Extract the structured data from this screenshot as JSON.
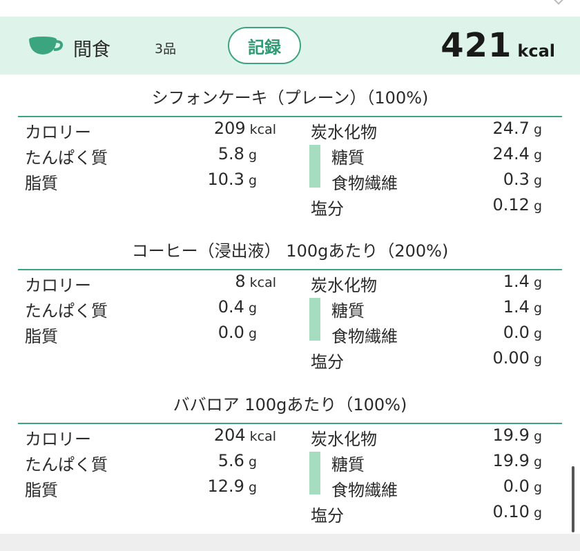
{
  "header": {
    "meal_icon": "coffee-cup-icon",
    "meal_name": "間食",
    "item_count": "3品",
    "record_button": "記録",
    "total_calories": "421",
    "total_unit": "kcal"
  },
  "colors": {
    "accent": "#3aa57f",
    "header_bg": "#def3ea",
    "bar": "#a6dcc0"
  },
  "labels": {
    "calories": "カロリー",
    "protein": "たんぱく質",
    "fat": "脂質",
    "carbs": "炭水化物",
    "sugar": "糖質",
    "fiber": "食物繊維",
    "salt": "塩分",
    "kcal": "kcal",
    "g": "g"
  },
  "foods": [
    {
      "title": "シフォンケーキ（プレーン）（100%)",
      "calories": "209",
      "protein": "5.8",
      "fat": "10.3",
      "carbs": "24.7",
      "sugar": "24.4",
      "fiber": "0.3",
      "salt": "0.12"
    },
    {
      "title": "コーヒー（浸出液） 100gあたり（200%)",
      "calories": "8",
      "protein": "0.4",
      "fat": "0.0",
      "carbs": "1.4",
      "sugar": "1.4",
      "fiber": "0.0",
      "salt": "0.00"
    },
    {
      "title": "ババロア 100gあたり（100%)",
      "calories": "204",
      "protein": "5.6",
      "fat": "12.9",
      "carbs": "19.9",
      "sugar": "19.9",
      "fiber": "0.0",
      "salt": "0.10"
    }
  ]
}
